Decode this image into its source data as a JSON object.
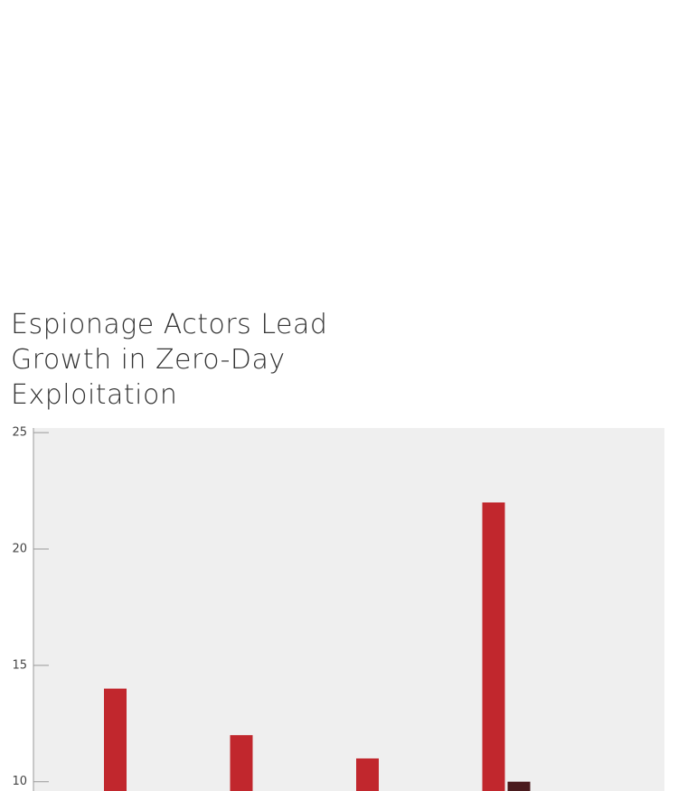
{
  "chart_data": {
    "type": "bar",
    "title": "Espionage Actors Lead Growth in Zero-Day Exploitation",
    "categories": [
      null,
      null,
      null,
      null
    ],
    "series": [
      {
        "color": "#c1272d",
        "values": [
          14,
          12,
          11,
          22
        ]
      },
      {
        "color": "#4a1a1d",
        "values": [
          null,
          null,
          null,
          10
        ]
      }
    ],
    "ylim": [
      9.6,
      25.2
    ],
    "yticks": [
      10,
      15,
      20,
      25
    ]
  }
}
